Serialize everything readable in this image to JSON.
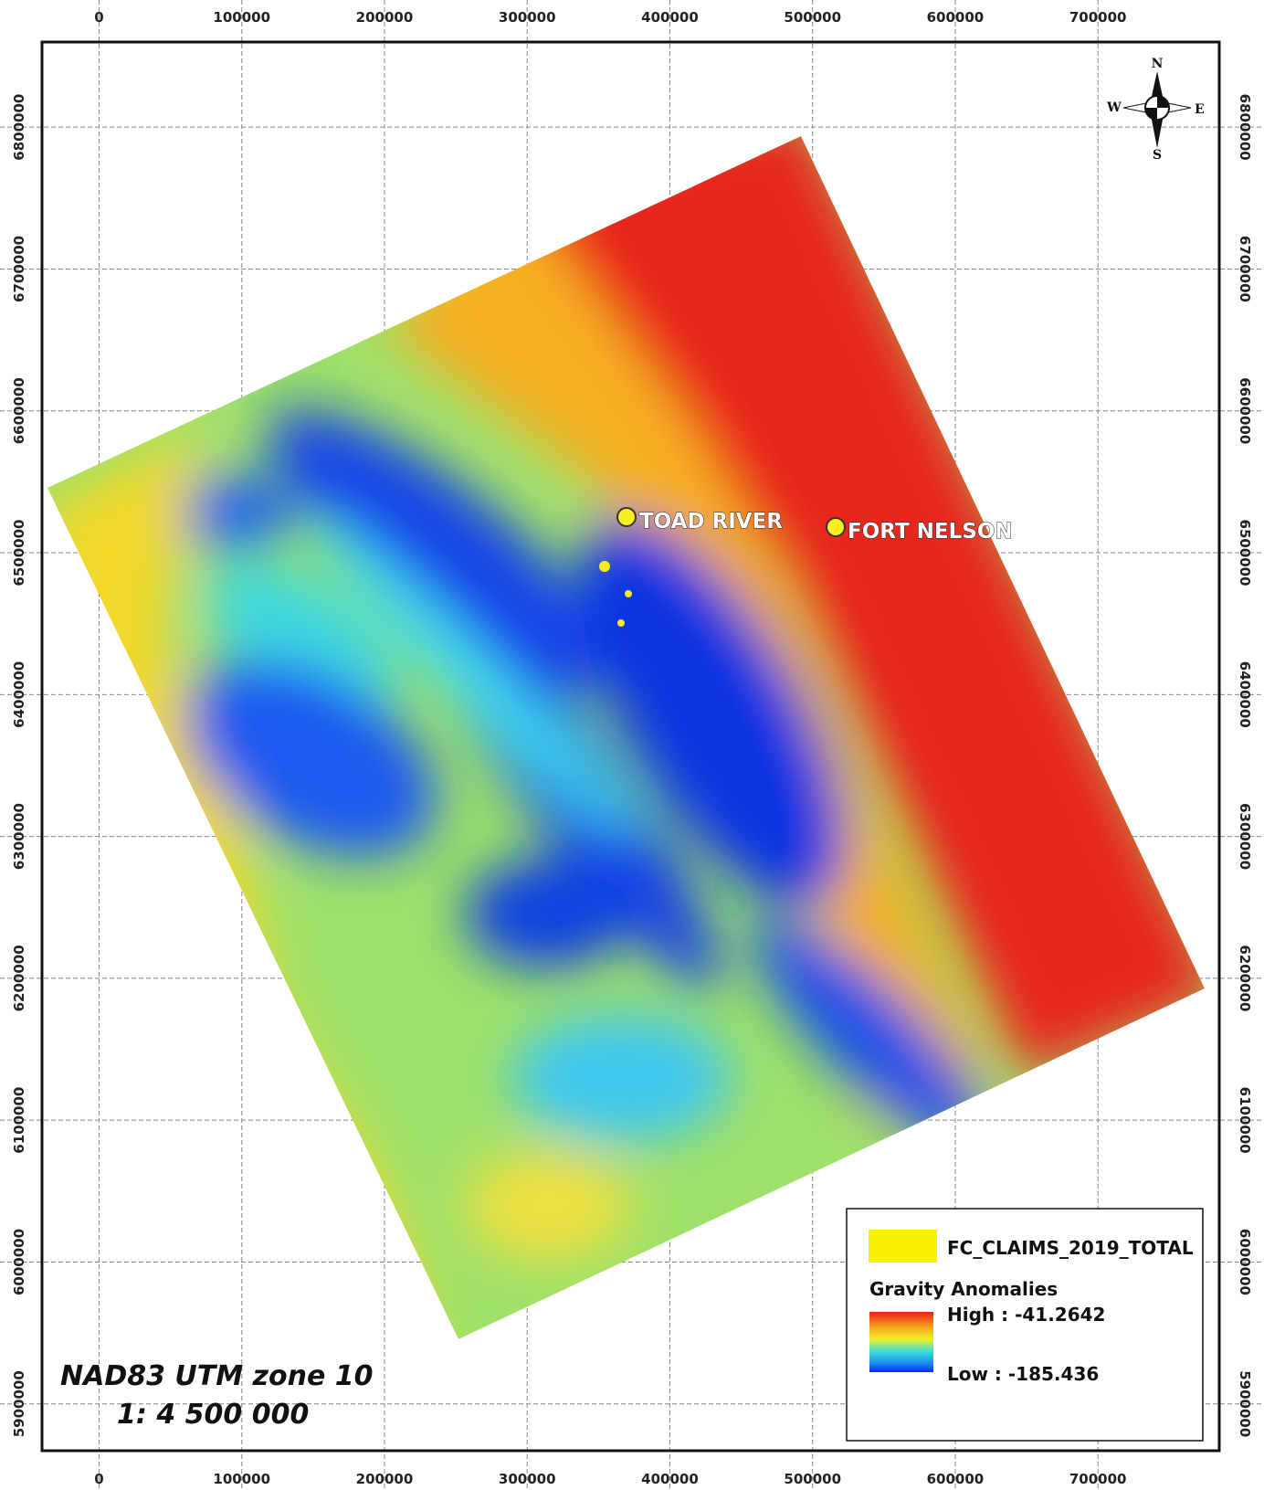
{
  "map": {
    "xticks": [
      0,
      100000,
      200000,
      300000,
      400000,
      500000,
      600000,
      700000
    ],
    "yticks": [
      5900000,
      6000000,
      6100000,
      6200000,
      6300000,
      6400000,
      6500000,
      6600000,
      6700000,
      6800000
    ],
    "xlim": [
      -40000,
      785000
    ],
    "ylim": [
      5867000,
      6860000
    ],
    "places": [
      {
        "label": "TOAD RIVER"
      },
      {
        "label": "FORT NELSON"
      }
    ],
    "projection": "NAD83 UTM zone 10",
    "scale": "1: 4 500 000",
    "compass": {
      "n": "N",
      "s": "S",
      "e": "E",
      "w": "W"
    },
    "legend": {
      "claims": "FC_CLAIMS_2019_TOTAL",
      "title": "Gravity Anomalies",
      "high": "High : -41.2642",
      "low": "Low : -185.436"
    }
  }
}
